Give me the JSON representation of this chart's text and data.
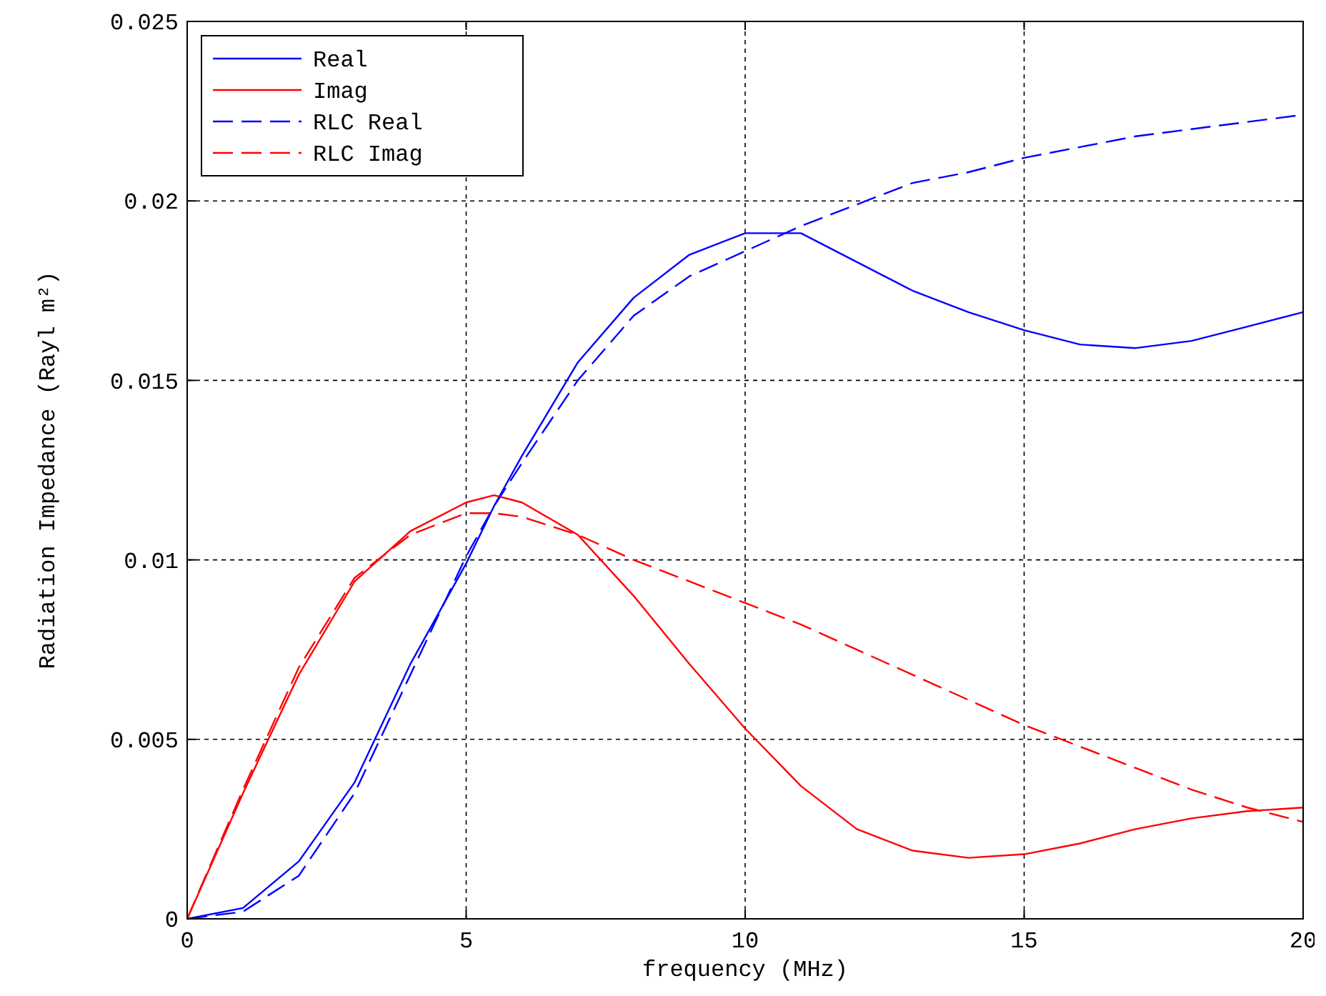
{
  "chart_data": {
    "type": "line",
    "xlabel": "frequency (MHz)",
    "ylabel": "Radiation Impedance (Rayl m²)",
    "xlim": [
      0,
      20
    ],
    "ylim": [
      0,
      0.025
    ],
    "xticks": [
      0,
      5,
      10,
      15,
      20
    ],
    "yticks": [
      0,
      0.005,
      0.01,
      0.015,
      0.02,
      0.025
    ],
    "grid": true,
    "legend": "top left",
    "x": [
      0,
      1,
      2,
      3,
      4,
      5,
      5.5,
      6,
      7,
      8,
      9,
      10,
      11,
      12,
      13,
      14,
      15,
      16,
      17,
      18,
      19,
      20
    ],
    "series": [
      {
        "name": "Real",
        "color": "#0000ff",
        "line_style": "solid",
        "values": [
          0,
          0.0003,
          0.0016,
          0.0038,
          0.0071,
          0.0099,
          0.0115,
          0.0129,
          0.0155,
          0.0173,
          0.0185,
          0.0191,
          0.0191,
          0.0183,
          0.0175,
          0.0169,
          0.0164,
          0.016,
          0.0159,
          0.0161,
          0.0165,
          0.0169
        ]
      },
      {
        "name": "Imag",
        "color": "#ff0000",
        "line_style": "solid",
        "values": [
          0,
          0.0035,
          0.0068,
          0.0094,
          0.0108,
          0.0116,
          0.0118,
          0.0116,
          0.0107,
          0.009,
          0.0071,
          0.0053,
          0.0037,
          0.0025,
          0.0019,
          0.0017,
          0.0018,
          0.0021,
          0.0025,
          0.0028,
          0.003,
          0.0031
        ]
      },
      {
        "name": "RLC Real",
        "color": "#0000ff",
        "line_style": "dashed",
        "values": [
          0,
          0.0002,
          0.0012,
          0.0035,
          0.0068,
          0.0101,
          0.0115,
          0.0127,
          0.015,
          0.0168,
          0.0179,
          0.0186,
          0.0193,
          0.0199,
          0.0205,
          0.0208,
          0.0212,
          0.0215,
          0.0218,
          0.022,
          0.0222,
          0.0224
        ]
      },
      {
        "name": "RLC Imag",
        "color": "#ff0000",
        "line_style": "dashed",
        "values": [
          0,
          0.0036,
          0.007,
          0.0095,
          0.0107,
          0.0113,
          0.0113,
          0.0112,
          0.0107,
          0.01,
          0.0094,
          0.0088,
          0.0082,
          0.0075,
          0.0068,
          0.0061,
          0.0054,
          0.0048,
          0.0042,
          0.0036,
          0.0031,
          0.0027
        ]
      }
    ]
  }
}
